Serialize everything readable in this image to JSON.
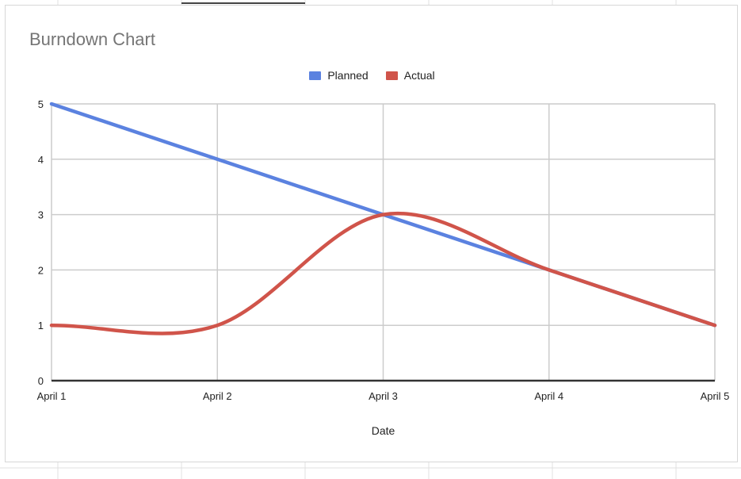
{
  "chart_data": {
    "type": "line",
    "title": "Burndown Chart",
    "xlabel": "Date",
    "ylabel": "",
    "categories": [
      "April 1",
      "April 2",
      "April 3",
      "April 4",
      "April 5"
    ],
    "yticks": [
      0,
      1,
      2,
      3,
      4,
      5
    ],
    "ylim": [
      0,
      5
    ],
    "grid": true,
    "legend_position": "top-center",
    "series": [
      {
        "name": "Planned",
        "values": [
          5,
          4,
          3,
          2,
          1
        ],
        "color": "#5b82e0",
        "smooth": false
      },
      {
        "name": "Actual",
        "values": [
          1,
          1,
          3,
          2,
          1
        ],
        "color": "#d0544a",
        "smooth": true
      }
    ]
  }
}
